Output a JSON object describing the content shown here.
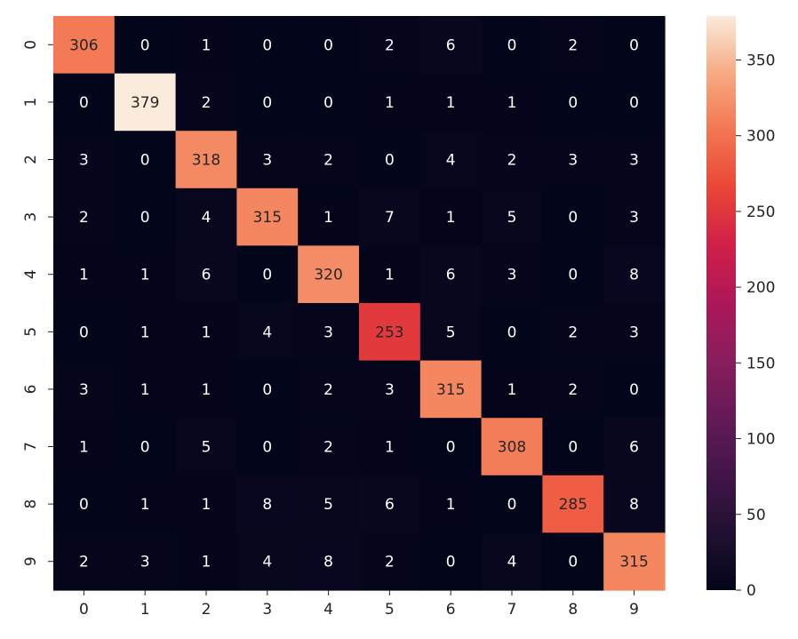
{
  "chart_data": {
    "type": "heatmap",
    "title": "",
    "xlabel": "",
    "ylabel": "",
    "x_categories": [
      "0",
      "1",
      "2",
      "3",
      "4",
      "5",
      "6",
      "7",
      "8",
      "9"
    ],
    "y_categories": [
      "0",
      "1",
      "2",
      "3",
      "4",
      "5",
      "6",
      "7",
      "8",
      "9"
    ],
    "values": [
      [
        306,
        0,
        1,
        0,
        0,
        2,
        6,
        0,
        2,
        0
      ],
      [
        0,
        379,
        2,
        0,
        0,
        1,
        1,
        1,
        0,
        0
      ],
      [
        3,
        0,
        318,
        3,
        2,
        0,
        4,
        2,
        3,
        3
      ],
      [
        2,
        0,
        4,
        315,
        1,
        7,
        1,
        5,
        0,
        3
      ],
      [
        1,
        1,
        6,
        0,
        320,
        1,
        6,
        3,
        0,
        8
      ],
      [
        0,
        1,
        1,
        4,
        3,
        253,
        5,
        0,
        2,
        3
      ],
      [
        3,
        1,
        1,
        0,
        2,
        3,
        315,
        1,
        2,
        0
      ],
      [
        1,
        0,
        5,
        0,
        2,
        1,
        0,
        308,
        0,
        6
      ],
      [
        0,
        1,
        1,
        8,
        5,
        6,
        1,
        0,
        285,
        8
      ],
      [
        2,
        3,
        1,
        4,
        8,
        2,
        0,
        4,
        0,
        315
      ]
    ],
    "colorscale": "rocket",
    "colorbar": {
      "range": [
        0,
        379
      ],
      "ticks": [
        0,
        50,
        100,
        150,
        200,
        250,
        300,
        350
      ],
      "tick_labels": [
        "0",
        "50",
        "100",
        "150",
        "200",
        "250",
        "300",
        "350"
      ]
    },
    "grid": false,
    "legend": "colorbar-right"
  }
}
